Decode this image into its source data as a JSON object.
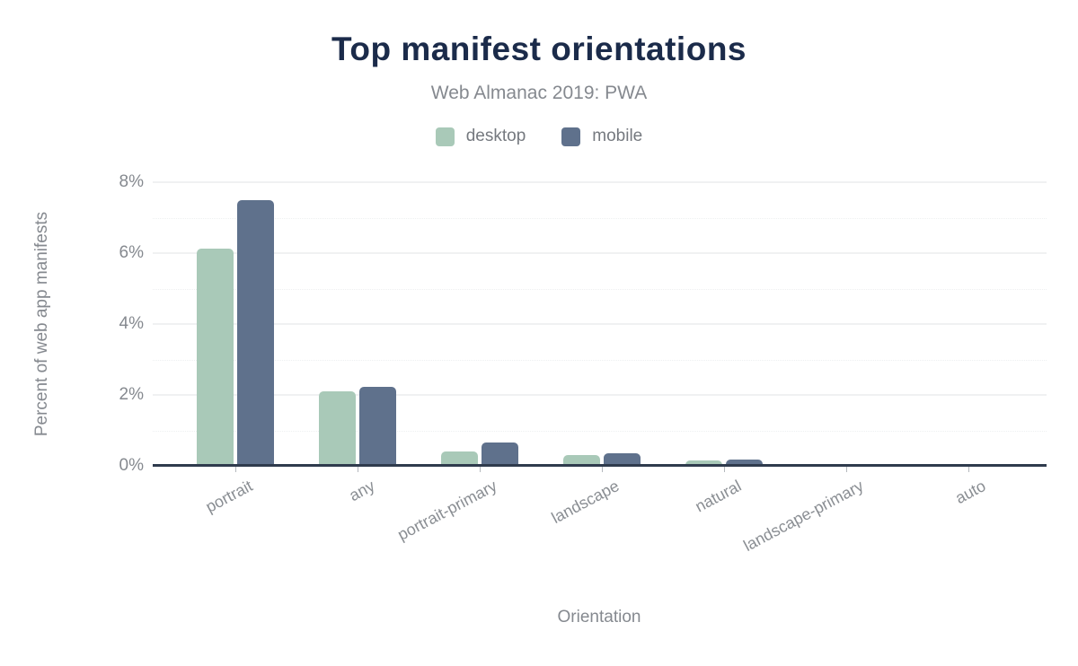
{
  "chart_data": {
    "type": "bar",
    "title": "Top manifest orientations",
    "subtitle": "Web Almanac 2019: PWA",
    "xlabel": "Orientation",
    "ylabel": "Percent of web app manifests",
    "categories": [
      "portrait",
      "any",
      "portrait-primary",
      "landscape",
      "natural",
      "landscape-primary",
      "auto"
    ],
    "series": [
      {
        "name": "desktop",
        "color": "#a9c9b8",
        "values": [
          6.13,
          2.09,
          0.4,
          0.31,
          0.16,
          0.05,
          0.04
        ]
      },
      {
        "name": "mobile",
        "color": "#5f718c",
        "values": [
          7.49,
          2.22,
          0.66,
          0.36,
          0.17,
          0.05,
          0.04
        ]
      }
    ],
    "ylim": [
      0,
      8
    ],
    "yticks": [
      0,
      2,
      4,
      6,
      8
    ],
    "ytick_labels": [
      "0%",
      "2%",
      "4%",
      "6%",
      "8%"
    ],
    "minor_yticks": [
      1,
      3,
      5,
      7
    ],
    "grid": "horizontal-major-solid-minor-dotted",
    "legend_position": "top-center"
  },
  "colors": {
    "title": "#1b2b4a",
    "muted_text": "#85898f",
    "axis_line": "#2f3b4d",
    "grid_major": "#f0f1f2",
    "desktop": "#a9c9b8",
    "mobile": "#5f718c",
    "background": "#ffffff"
  }
}
